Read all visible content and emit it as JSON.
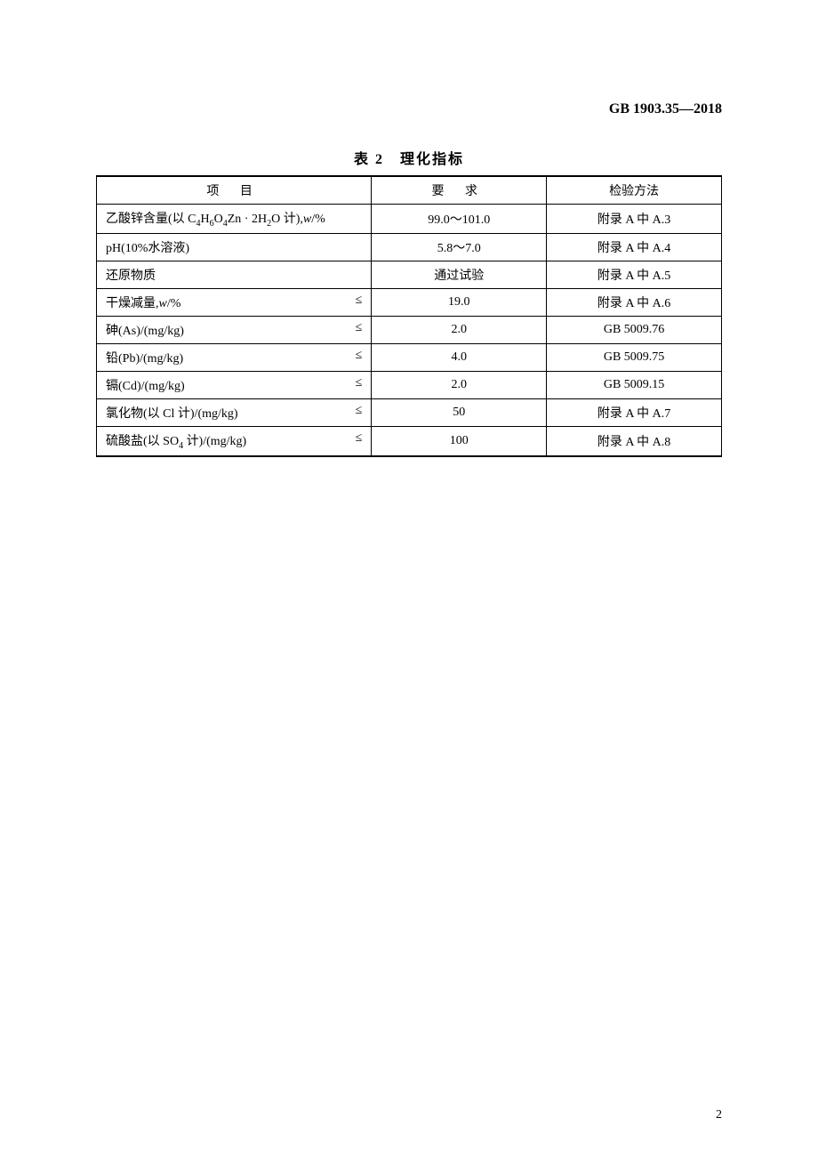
{
  "header": {
    "standard_code": "GB 1903.35—2018"
  },
  "table": {
    "title": "表 2　理化指标",
    "columns": {
      "project": "项 目",
      "requirement": "要 求",
      "method": "检验方法"
    },
    "rows": [
      {
        "project_html": "乙酸锌含量(以 C<sub>4</sub>H<sub>6</sub>O<sub>4</sub>Zn · 2H<sub>2</sub>O 计),<span class='italic'>w</span>/%",
        "leq": "",
        "requirement": "99.0～101.0",
        "method": "附录 A 中 A.3"
      },
      {
        "project_html": "pH(10%水溶液)",
        "leq": "",
        "requirement": "5.8～7.0",
        "method": "附录 A 中 A.4"
      },
      {
        "project_html": "还原物质",
        "leq": "",
        "requirement": "通过试验",
        "method": "附录 A 中 A.5"
      },
      {
        "project_html": "干燥减量,<span class='italic'>w</span>/%",
        "leq": "≤",
        "requirement": "19.0",
        "method": "附录 A 中 A.6"
      },
      {
        "project_html": "砷(As)/(mg/kg)",
        "leq": "≤",
        "requirement": "2.0",
        "method": "GB 5009.76"
      },
      {
        "project_html": "铅(Pb)/(mg/kg)",
        "leq": "≤",
        "requirement": "4.0",
        "method": "GB 5009.75"
      },
      {
        "project_html": "镉(Cd)/(mg/kg)",
        "leq": "≤",
        "requirement": "2.0",
        "method": "GB 5009.15"
      },
      {
        "project_html": "氯化物(以 Cl 计)/(mg/kg)",
        "leq": "≤",
        "requirement": "50",
        "method": "附录 A 中 A.7"
      },
      {
        "project_html": "硫酸盐(以 SO<sub>4</sub> 计)/(mg/kg)",
        "leq": "≤",
        "requirement": "100",
        "method": "附录 A 中 A.8"
      }
    ]
  },
  "footer": {
    "page_number": "2"
  }
}
